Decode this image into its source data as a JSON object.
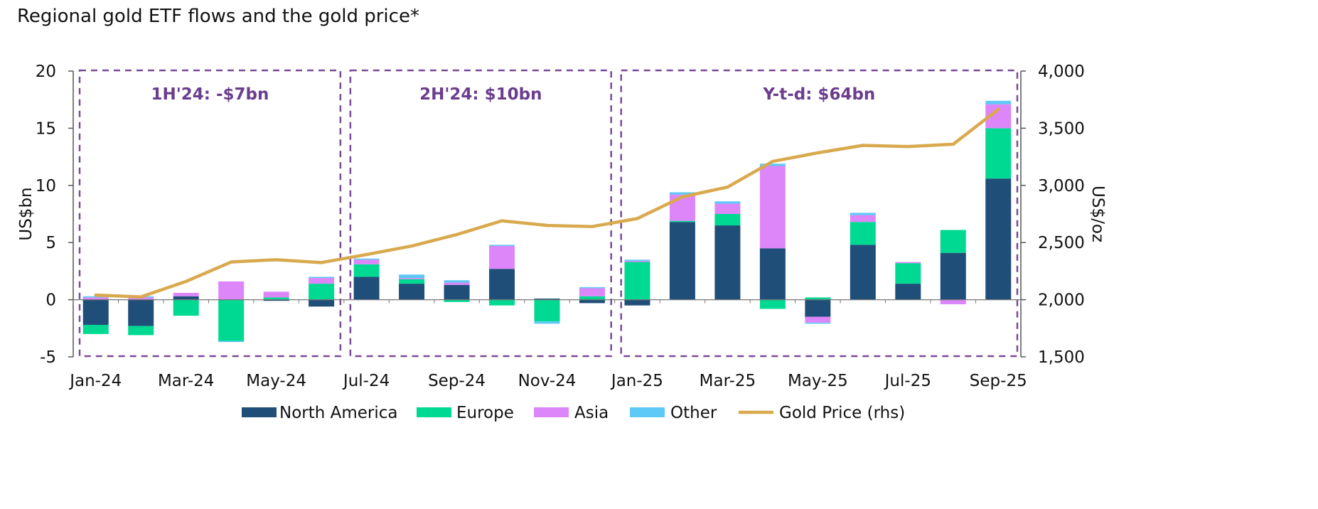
{
  "chart_data": {
    "type": "bar",
    "title": "Regional gold ETF flows and the gold price*",
    "ylabel": "US$bn",
    "y2label": "US$/oz",
    "ylim": [
      -5,
      20
    ],
    "y2lim": [
      1500,
      4000
    ],
    "yticks": [
      "20",
      "15",
      "10",
      "5",
      "0",
      "-5"
    ],
    "y2ticks": [
      "4,000",
      "3,500",
      "3,000",
      "2,500",
      "2,000",
      "1,500"
    ],
    "categories": [
      "Jan-24",
      "Feb-24",
      "Mar-24",
      "Apr-24",
      "May-24",
      "Jun-24",
      "Jul-24",
      "Aug-24",
      "Sep-24",
      "Oct-24",
      "Nov-24",
      "Dec-24",
      "Jan-25",
      "Feb-25",
      "Mar-25",
      "Apr-25",
      "May-25",
      "Jun-25",
      "Jul-25",
      "Aug-25",
      "Sep-25"
    ],
    "xtick_labels": [
      "Jan-24",
      "Mar-24",
      "May-24",
      "Jul-24",
      "Sep-24",
      "Nov-24",
      "Jan-25",
      "Mar-25",
      "May-25",
      "Jul-25",
      "Sep-25"
    ],
    "series": [
      {
        "name": "North America",
        "color": "#1f4e79",
        "values": [
          -2.2,
          -2.3,
          0.3,
          0.0,
          -0.1,
          -0.6,
          2.0,
          1.4,
          1.3,
          2.7,
          0.1,
          -0.3,
          -0.5,
          6.8,
          6.5,
          4.5,
          -1.5,
          4.8,
          1.4,
          4.1,
          10.6
        ]
      },
      {
        "name": "Europe",
        "color": "#00d991",
        "values": [
          -0.8,
          -0.8,
          -1.4,
          -3.6,
          0.2,
          1.4,
          1.1,
          0.4,
          -0.2,
          -0.5,
          -1.9,
          0.3,
          3.3,
          0.1,
          1.0,
          -0.8,
          0.2,
          2.0,
          1.8,
          2.0,
          4.4
        ]
      },
      {
        "name": "Asia",
        "color": "#dd86fa",
        "values": [
          0.2,
          0.2,
          0.3,
          1.6,
          0.5,
          0.5,
          0.4,
          0.1,
          0.2,
          2.0,
          0.0,
          0.7,
          0.1,
          2.3,
          0.9,
          7.2,
          -0.5,
          0.6,
          0.1,
          -0.4,
          2.1
        ]
      },
      {
        "name": "Other",
        "color": "#5ec8f7",
        "values": [
          0.1,
          0.1,
          0.0,
          -0.1,
          0.0,
          0.1,
          0.1,
          0.3,
          0.2,
          0.1,
          -0.2,
          0.1,
          0.1,
          0.2,
          0.2,
          0.2,
          -0.1,
          0.2,
          0.0,
          0.0,
          0.3
        ]
      },
      {
        "name": "Gold Price (rhs)",
        "color": "#d9a94e",
        "type": "line",
        "axis": "right",
        "values": [
          2040,
          2025,
          2160,
          2330,
          2350,
          2325,
          2395,
          2470,
          2570,
          2690,
          2650,
          2640,
          2710,
          2900,
          2985,
          3210,
          3285,
          3350,
          3340,
          3360,
          3665
        ]
      }
    ],
    "period_boxes": [
      {
        "label": "1H'24: -$7bn",
        "start": "Jan-24",
        "end": "Jun-24"
      },
      {
        "label": "2H'24: $10bn",
        "start": "Jul-24",
        "end": "Dec-24"
      },
      {
        "label": "Y-t-d: $64bn",
        "start": "Jan-25",
        "end": "Sep-25"
      }
    ],
    "legend": [
      "North America",
      "Europe",
      "Asia",
      "Other",
      "Gold Price (rhs)"
    ],
    "legend_position": "bottom"
  }
}
